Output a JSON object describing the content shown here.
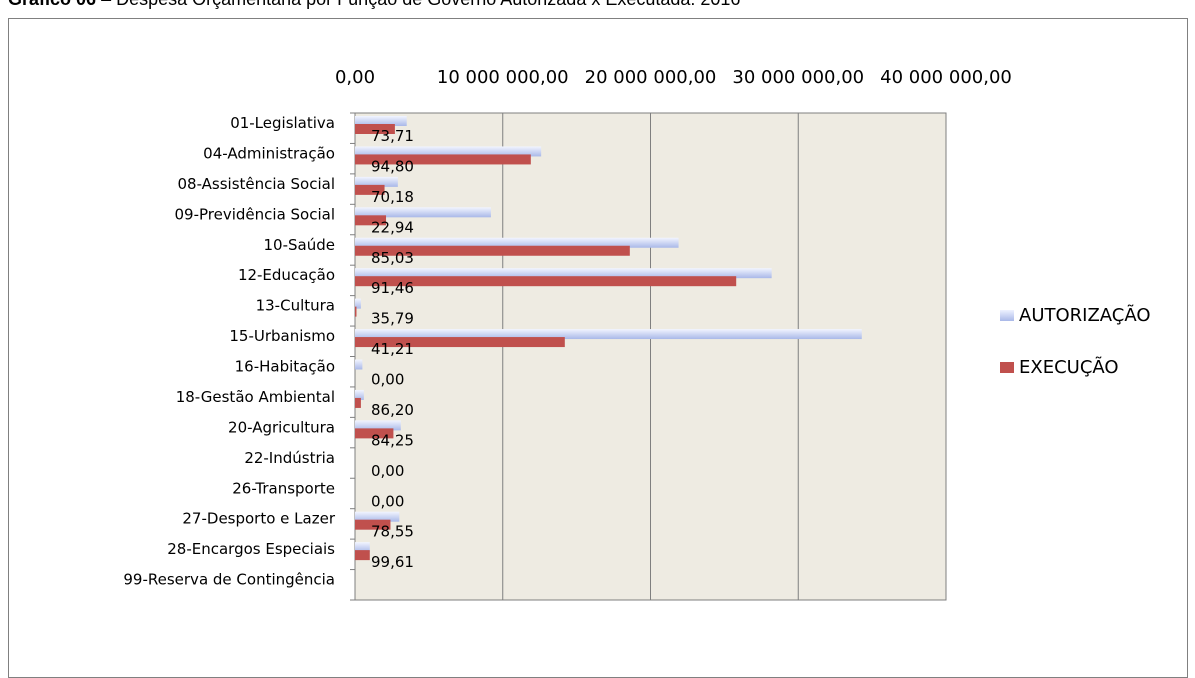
{
  "caption": {
    "prefix": "Gráfico 06",
    "text": "– Despesa Orçamentária por Função de Governo Autorizada x Executada: 2016"
  },
  "chart_data": {
    "type": "bar",
    "orientation": "horizontal",
    "categories": [
      "01-Legislativa",
      "04-Administração",
      "08-Assistência Social",
      "09-Previdência Social",
      "10-Saúde",
      "12-Educação",
      "13-Cultura",
      "15-Urbanismo",
      "16-Habitação",
      "18-Gestão Ambiental",
      "20-Agricultura",
      "22-Indústria",
      "26-Transporte",
      "27-Desporto e Lazer",
      "28-Encargos Especiais",
      "99-Reserva de Contingência"
    ],
    "series": [
      {
        "name": "AUTORIZAÇÃO",
        "color": "#a9b8e8",
        "values": [
          3500000,
          12600000,
          2900000,
          9200000,
          21900000,
          28200000,
          400000,
          34300000,
          500000,
          600000,
          3100000,
          0,
          0,
          3000000,
          1000000,
          0
        ]
      },
      {
        "name": "EXECUÇÃO",
        "color": "#c0504d",
        "values": [
          2700000,
          11900000,
          2000000,
          2100000,
          18600000,
          25800000,
          100000,
          14200000,
          0,
          400000,
          2600000,
          0,
          0,
          2400000,
          1000000,
          0
        ]
      }
    ],
    "data_labels": [
      "73,71",
      "94,80",
      "70,18",
      "22,94",
      "85,03",
      "91,46",
      "35,79",
      "41,21",
      "0,00",
      "86,20",
      "84,25",
      "0,00",
      "0,00",
      "78,55",
      "99,61",
      ""
    ],
    "x_ticks": [
      "0,00",
      "10 000 000,00",
      "20 000 000,00",
      "30 000 000,00",
      "40 000 000,00"
    ],
    "xlim": [
      0,
      40000000
    ],
    "grid": true,
    "legend_position": "right",
    "plot_background": "#eeebe2"
  }
}
